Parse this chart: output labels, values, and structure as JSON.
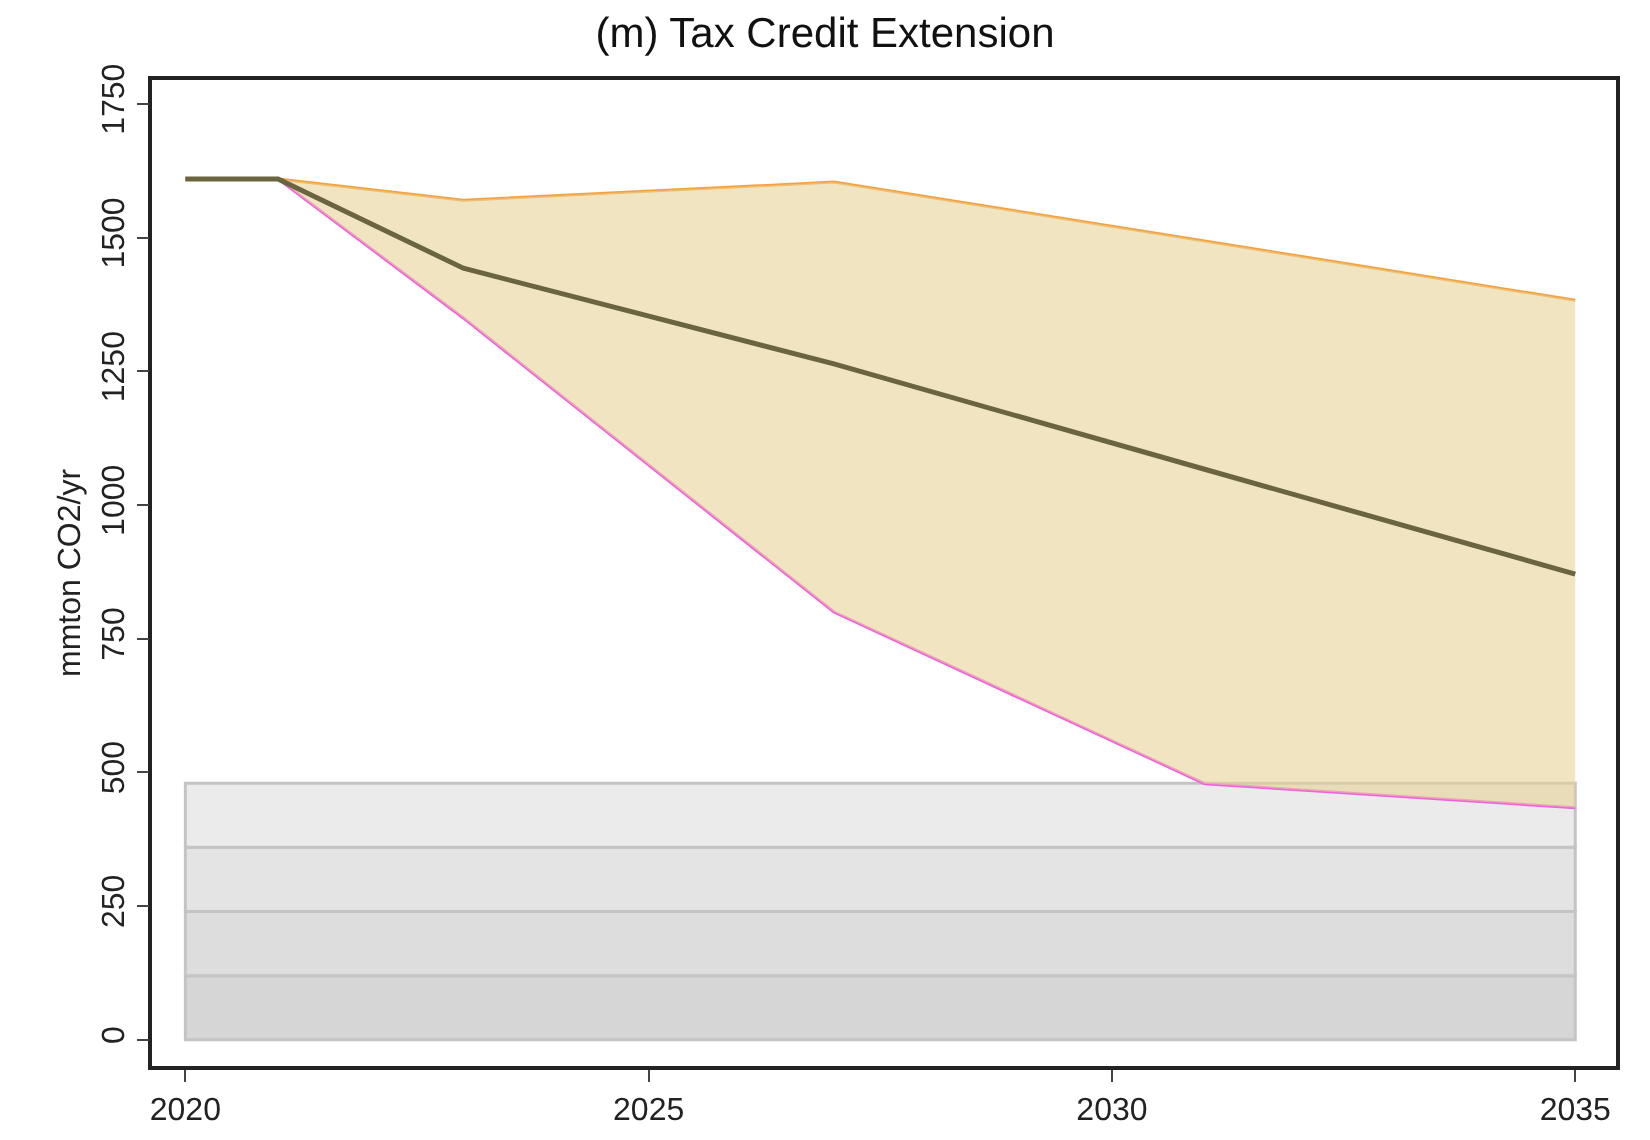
{
  "chart_data": {
    "type": "line",
    "title": "(m) Tax Credit Extension",
    "ylabel": "mmton CO2/yr",
    "x": [
      2020,
      2021,
      2023,
      2027,
      2031,
      2035
    ],
    "series": [
      {
        "color": "#f060e0",
        "values": [
          1610,
          1610,
          1350,
          800,
          479,
          434
        ]
      },
      {
        "color": "#f5a040",
        "values": [
          1610,
          1610,
          1570,
          1604,
          1494,
          1383
        ]
      },
      {
        "color": "#6b6440",
        "values": [
          1610,
          1610,
          1443,
          1264,
          1067,
          871
        ],
        "lower": [
          1610,
          1610,
          1350,
          800,
          479,
          434
        ],
        "upper": [
          1610,
          1610,
          1570,
          1604,
          1494,
          1383
        ]
      }
    ],
    "bands": [
      {
        "axis": "y",
        "from": 0,
        "to": 120,
        "color": "#d6d6d6"
      },
      {
        "axis": "y",
        "from": 120,
        "to": 240,
        "color": "#dddddd"
      },
      {
        "axis": "y",
        "from": 240,
        "to": 360,
        "color": "#e4e4e4"
      },
      {
        "axis": "y",
        "from": 360,
        "to": 480,
        "color": "#ebebeb"
      }
    ],
    "xlim": [
      2019.64,
      2035.44
    ],
    "xticks": [
      2020,
      2025,
      2030,
      2035
    ],
    "ylim": [
      -49,
      1795
    ],
    "yticks": [
      0,
      250,
      500,
      750,
      1000,
      1250,
      1500,
      1750
    ],
    "grid": false,
    "line_style": "solid",
    "marker": "none"
  }
}
